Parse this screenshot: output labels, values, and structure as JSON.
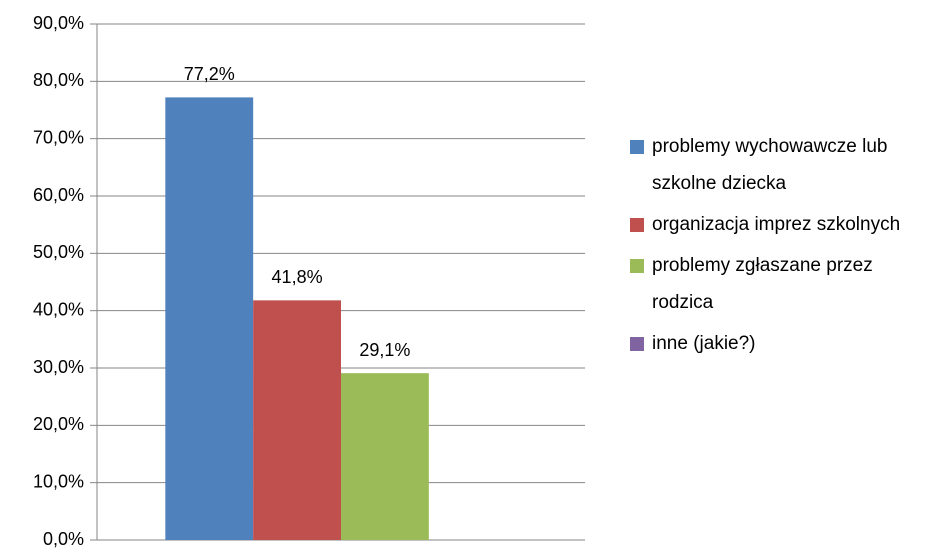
{
  "chart_data": {
    "type": "bar",
    "categories": [
      null
    ],
    "series": [
      {
        "name": "problemy wychowawcze lub szkolne dziecka",
        "color": "#4f81bd",
        "values": [
          77.2
        ],
        "value_labels": [
          "77,2%"
        ]
      },
      {
        "name": "organizacja imprez szkolnych",
        "color": "#c0504d",
        "values": [
          41.8
        ],
        "value_labels": [
          "41,8%"
        ]
      },
      {
        "name": "problemy zgłaszane przez rodzica",
        "color": "#9bbb59",
        "values": [
          29.1
        ],
        "value_labels": [
          "29,1%"
        ]
      },
      {
        "name": "inne (jakie?)",
        "color": "#8064a2",
        "values": [
          0
        ],
        "value_labels": [
          null
        ]
      }
    ],
    "ylim": [
      0,
      90
    ],
    "yticks": [
      {
        "value": 0,
        "label": "0,0%"
      },
      {
        "value": 10,
        "label": "10,0%"
      },
      {
        "value": 20,
        "label": "20,0%"
      },
      {
        "value": 30,
        "label": "30,0%"
      },
      {
        "value": 40,
        "label": "40,0%"
      },
      {
        "value": 50,
        "label": "50,0%"
      },
      {
        "value": 60,
        "label": "60,0%"
      },
      {
        "value": 70,
        "label": "70,0%"
      },
      {
        "value": 80,
        "label": "80,0%"
      },
      {
        "value": 90,
        "label": "90,0%"
      }
    ],
    "grid": true,
    "legend": "right"
  }
}
